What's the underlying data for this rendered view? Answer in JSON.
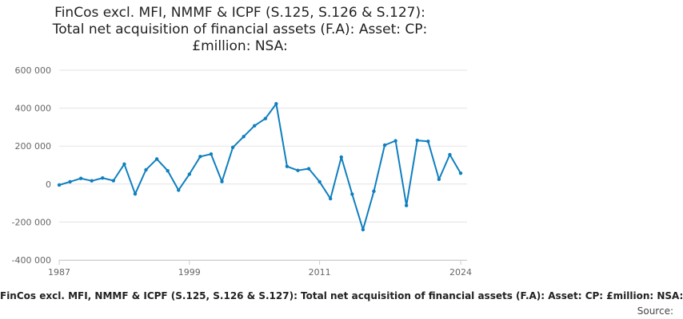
{
  "chart_data": {
    "type": "line",
    "title_lines": [
      "FinCos excl. MFI, NMMF & ICPF (S.125, S.126 & S.127):",
      "Total net acquisition of financial assets (F.A): Asset: CP:",
      "£million: NSA:"
    ],
    "xlabel": "FinCos excl. MFI, NMMF & ICPF (S.125, S.126 & S.127): Total net acquisition of financial assets (F.A): Asset: CP: £million: NSA:",
    "source_label": "Source:",
    "ylim": [
      -400000,
      600000
    ],
    "y_ticks": [
      600000,
      400000,
      200000,
      0,
      -200000,
      -400000
    ],
    "y_tick_labels": [
      "600 000",
      "400 000",
      "200 000",
      "0",
      "-200 000",
      "-400 000"
    ],
    "xlim": [
      1987,
      2024
    ],
    "x_ticks": [
      1987,
      1999,
      2011,
      2024
    ],
    "x_tick_labels": [
      "1987",
      "1999",
      "2011",
      "2024"
    ],
    "grid": true,
    "line_color": "#0f7fbf",
    "series": [
      {
        "name": "FinCos excl. MFI, NMMF & ICPF (S.125, S.126 & S.127)",
        "x": [
          1987,
          1988,
          1989,
          1990,
          1991,
          1992,
          1993,
          1994,
          1995,
          1996,
          1997,
          1998,
          1999,
          2000,
          2001,
          2002,
          2003,
          2004,
          2005,
          2006,
          2007,
          2008,
          2009,
          2010,
          2011,
          2012,
          2013,
          2014,
          2015,
          2016,
          2017,
          2018,
          2019,
          2020,
          2021,
          2022,
          2023,
          2024
        ],
        "values": [
          -5000,
          12000,
          30000,
          17000,
          32000,
          18000,
          105000,
          -52000,
          75000,
          132000,
          70000,
          -32000,
          52000,
          145000,
          158000,
          13000,
          193000,
          250000,
          307000,
          345000,
          423000,
          93000,
          72000,
          81000,
          12000,
          -77000,
          142000,
          -53000,
          -240000,
          -38000,
          205000,
          228000,
          -113000,
          230000,
          225000,
          25000,
          155000,
          57000
        ]
      }
    ]
  }
}
